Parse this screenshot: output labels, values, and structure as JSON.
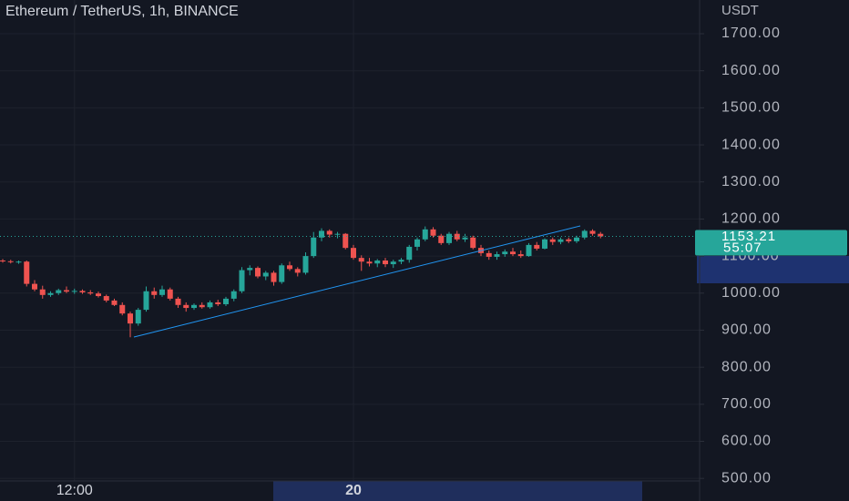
{
  "chart_data": {
    "type": "candlestick",
    "title": "Ethereum / TetherUS, 1h, BINANCE",
    "currency": "USDT",
    "up_color": "#26a69a",
    "down_color": "#ef5350",
    "grid": true,
    "ylim": [
      439,
      1791
    ],
    "yticks": [
      {
        "value": 500,
        "label": "500.00"
      },
      {
        "value": 600,
        "label": "600.00"
      },
      {
        "value": 700,
        "label": "700.00"
      },
      {
        "value": 800,
        "label": "800.00"
      },
      {
        "value": 900,
        "label": "900.00"
      },
      {
        "value": 1000,
        "label": "1000.00"
      },
      {
        "value": 1100,
        "label": "1100.00"
      },
      {
        "value": 1200,
        "label": "1200.00"
      },
      {
        "value": 1300,
        "label": "1300.00"
      },
      {
        "value": 1400,
        "label": "1400.00"
      },
      {
        "value": 1500,
        "label": "1500.00"
      },
      {
        "value": 1600,
        "label": "1600.00"
      },
      {
        "value": 1700,
        "label": "1700.00"
      }
    ],
    "last_price": 1153.21,
    "countdown": "55:07",
    "categories": [
      null,
      null,
      null,
      null,
      null,
      null,
      null,
      null,
      null,
      "12:00",
      null,
      null,
      null,
      null,
      null,
      null,
      null,
      null,
      null,
      null,
      null,
      null,
      null,
      null,
      null,
      null,
      null,
      null,
      null,
      null,
      null,
      null,
      null,
      null,
      null,
      null,
      null,
      null,
      null,
      null,
      null,
      null,
      null,
      null,
      "20",
      null,
      null,
      null,
      null,
      null,
      null,
      null,
      null,
      null,
      null,
      null,
      null,
      null,
      null,
      null,
      null,
      null,
      null,
      null,
      null,
      null,
      null,
      null,
      null,
      null,
      null,
      null,
      null,
      null,
      null,
      null
    ],
    "ohlc": [
      [
        1088,
        1092,
        1082,
        1086
      ],
      [
        1086,
        1090,
        1080,
        1084
      ],
      [
        1084,
        1088,
        1079,
        1085
      ],
      [
        1085,
        1088,
        1018,
        1025
      ],
      [
        1025,
        1035,
        1005,
        1010
      ],
      [
        1010,
        1020,
        985,
        995
      ],
      [
        995,
        1005,
        990,
        1000
      ],
      [
        1000,
        1012,
        995,
        1008
      ],
      [
        1008,
        1018,
        1000,
        1004
      ],
      [
        1004,
        1012,
        998,
        1006
      ],
      [
        1006,
        1010,
        998,
        1002
      ],
      [
        1002,
        1008,
        995,
        999
      ],
      [
        999,
        1004,
        988,
        992
      ],
      [
        992,
        996,
        975,
        980
      ],
      [
        980,
        985,
        965,
        968
      ],
      [
        968,
        975,
        940,
        945
      ],
      [
        945,
        950,
        881,
        918
      ],
      [
        918,
        960,
        912,
        955
      ],
      [
        955,
        1018,
        950,
        1005
      ],
      [
        1005,
        1015,
        985,
        995
      ],
      [
        995,
        1020,
        990,
        1010
      ],
      [
        1010,
        1015,
        980,
        985
      ],
      [
        985,
        990,
        960,
        968
      ],
      [
        968,
        975,
        950,
        960
      ],
      [
        960,
        972,
        955,
        968
      ],
      [
        968,
        975,
        958,
        962
      ],
      [
        962,
        980,
        958,
        975
      ],
      [
        975,
        982,
        965,
        970
      ],
      [
        970,
        990,
        965,
        985
      ],
      [
        985,
        1010,
        978,
        1005
      ],
      [
        1005,
        1070,
        1000,
        1062
      ],
      [
        1062,
        1075,
        1048,
        1068
      ],
      [
        1068,
        1072,
        1040,
        1045
      ],
      [
        1045,
        1060,
        1035,
        1055
      ],
      [
        1055,
        1060,
        1020,
        1030
      ],
      [
        1030,
        1080,
        1025,
        1075
      ],
      [
        1075,
        1085,
        1060,
        1065
      ],
      [
        1065,
        1070,
        1045,
        1055
      ],
      [
        1055,
        1110,
        1050,
        1100
      ],
      [
        1100,
        1165,
        1095,
        1150
      ],
      [
        1150,
        1175,
        1140,
        1168
      ],
      [
        1168,
        1172,
        1150,
        1158
      ],
      [
        1158,
        1165,
        1148,
        1160
      ],
      [
        1160,
        1162,
        1118,
        1122
      ],
      [
        1122,
        1130,
        1090,
        1095
      ],
      [
        1095,
        1102,
        1060,
        1085
      ],
      [
        1085,
        1095,
        1072,
        1080
      ],
      [
        1080,
        1092,
        1070,
        1088
      ],
      [
        1088,
        1095,
        1070,
        1078
      ],
      [
        1078,
        1090,
        1068,
        1085
      ],
      [
        1085,
        1095,
        1078,
        1090
      ],
      [
        1090,
        1130,
        1082,
        1125
      ],
      [
        1125,
        1150,
        1115,
        1145
      ],
      [
        1145,
        1180,
        1140,
        1172
      ],
      [
        1172,
        1178,
        1150,
        1155
      ],
      [
        1155,
        1160,
        1130,
        1135
      ],
      [
        1135,
        1165,
        1130,
        1160
      ],
      [
        1160,
        1168,
        1140,
        1145
      ],
      [
        1145,
        1160,
        1138,
        1150
      ],
      [
        1150,
        1155,
        1118,
        1122
      ],
      [
        1122,
        1130,
        1100,
        1108
      ],
      [
        1108,
        1115,
        1090,
        1098
      ],
      [
        1098,
        1112,
        1090,
        1105
      ],
      [
        1105,
        1118,
        1098,
        1112
      ],
      [
        1112,
        1122,
        1100,
        1105
      ],
      [
        1105,
        1115,
        1095,
        1100
      ],
      [
        1100,
        1135,
        1098,
        1130
      ],
      [
        1130,
        1138,
        1115,
        1120
      ],
      [
        1120,
        1148,
        1118,
        1145
      ],
      [
        1145,
        1150,
        1130,
        1138
      ],
      [
        1138,
        1150,
        1132,
        1145
      ],
      [
        1145,
        1150,
        1135,
        1140
      ],
      [
        1140,
        1155,
        1135,
        1150
      ],
      [
        1150,
        1172,
        1145,
        1168
      ],
      [
        1168,
        1172,
        1155,
        1160
      ],
      [
        1160,
        1165,
        1148,
        1153.21
      ]
    ]
  }
}
